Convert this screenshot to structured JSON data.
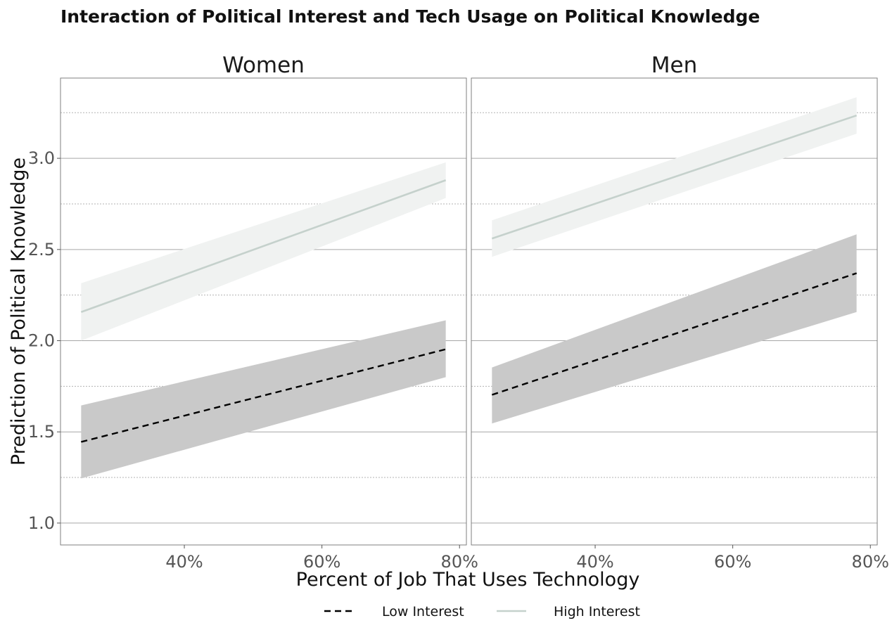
{
  "chart_data": {
    "type": "line",
    "title": "Interaction of Political Interest and Tech Usage on Political Knowledge",
    "xlabel": "Percent of Job That Uses Technology",
    "ylabel": "Prediction of Political Knowledge",
    "xlim": [
      0.22,
      0.81
    ],
    "ylim": [
      0.88,
      3.44
    ],
    "x_ticks": [
      0.4,
      0.6,
      0.8
    ],
    "x_tick_labels": [
      "40%",
      "60%",
      "80%"
    ],
    "y_ticks": [
      1.0,
      1.5,
      2.0,
      2.5,
      3.0
    ],
    "y_tick_labels": [
      "1.0",
      "1.5",
      "2.0",
      "2.5",
      "3.0"
    ],
    "y_minor_ticks": [
      1.25,
      1.75,
      2.25,
      2.75,
      3.25
    ],
    "grid": true,
    "legend_position": "bottom",
    "legend": [
      {
        "label": "Low Interest",
        "color": "#000000",
        "dash": true
      },
      {
        "label": "High Interest",
        "color": "#c5d1cc",
        "dash": false
      }
    ],
    "band_colors": {
      "Low Interest": "#c9c9c9",
      "High Interest": "#f0f2f1"
    },
    "panels": [
      {
        "name": "Women",
        "series": [
          {
            "name": "Low Interest",
            "x": [
              0.25,
              0.78
            ],
            "y": [
              1.445,
              1.953
            ],
            "lower": [
              1.245,
              1.8
            ],
            "upper": [
              1.645,
              2.112
            ]
          },
          {
            "name": "High Interest",
            "x": [
              0.25,
              0.78
            ],
            "y": [
              2.157,
              2.88
            ],
            "lower": [
              2.0,
              2.782
            ],
            "upper": [
              2.315,
              2.978
            ]
          }
        ]
      },
      {
        "name": "Men",
        "series": [
          {
            "name": "Low Interest",
            "x": [
              0.25,
              0.78
            ],
            "y": [
              1.703,
              2.37
            ],
            "lower": [
              1.546,
              2.157
            ],
            "upper": [
              1.853,
              2.583
            ]
          },
          {
            "name": "High Interest",
            "x": [
              0.25,
              0.78
            ],
            "y": [
              2.56,
              3.235
            ],
            "lower": [
              2.46,
              3.135
            ],
            "upper": [
              2.66,
              3.335
            ]
          }
        ]
      }
    ]
  }
}
